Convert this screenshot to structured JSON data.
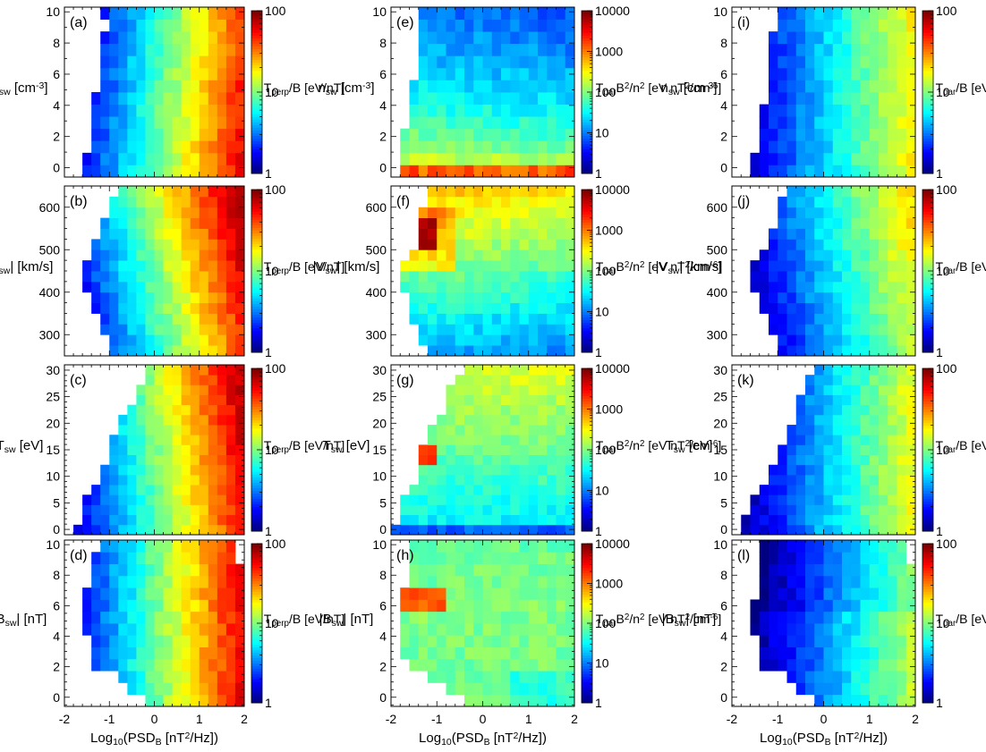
{
  "figure": {
    "xlabel": "Log10(PSD_B [nT^2/Hz])",
    "xlabel_parts": {
      "prefix": "Log",
      "prefix_sub": "10",
      "mid": "(PSD",
      "mid_sub": "B",
      "rest": " [nT",
      "rest_sup": "2",
      "end": "/Hz])"
    },
    "xticks": [
      "-2",
      "-1",
      "0",
      "1",
      "2"
    ],
    "colorbar_labels": {
      "tperp": {
        "base": "T",
        "sub": "perp",
        "rest": "/B [eV/nT]"
      },
      "tpar_b2n2": {
        "base": "T",
        "sub": "par",
        "mid": "B",
        "sup1": "2",
        "mid2": "/n",
        "sup2": "2",
        "rest": " [eV nT",
        "sup3": "2",
        "rest2": "/cm",
        "sup4": "-6",
        "end": "]"
      },
      "tpar_b": {
        "base": "T",
        "sub": "par",
        "rest": "/B [eV/nT]"
      }
    },
    "colorbar_ticks": {
      "tperp": [
        "1",
        "10",
        "100"
      ],
      "tpar_b2n2": [
        "1",
        "10",
        "100",
        "1000",
        "10000"
      ],
      "tpar_b": [
        "1",
        "10",
        "100"
      ]
    },
    "ylabels": {
      "n": {
        "base": "n",
        "sub": "sw",
        "rest": " [cm",
        "sup": "-3",
        "end": "]"
      },
      "v": {
        "base": "|V",
        "sub": "sw",
        "rest": "| [km/s]"
      },
      "t": {
        "base": "T",
        "sub": "sw",
        "rest": " [eV]"
      },
      "b": {
        "base": "|B",
        "sub": "sw",
        "rest": "| [nT]"
      }
    },
    "yticks": {
      "n": [
        "0",
        "2",
        "4",
        "6",
        "8",
        "10"
      ],
      "v": [
        "300",
        "400",
        "500",
        "600"
      ],
      "t": [
        "0",
        "5",
        "10",
        "15",
        "20",
        "25",
        "30"
      ],
      "b": [
        "0",
        "2",
        "4",
        "6",
        "8",
        "10"
      ]
    }
  },
  "chart_data": [
    {
      "panel": "a",
      "type": "heatmap",
      "x_quantity": "Log10(PSD_B)",
      "y_quantity": "n_sw",
      "ylim": [
        -0.6,
        10.3
      ],
      "xlim": [
        -2,
        2
      ],
      "colorbar": "Tperp/B [eV/nT]",
      "clim": [
        1,
        100
      ],
      "clim_log": true,
      "trend": "color increases with x; edge at x=-1.6..-1.0 for low y, white upper-left"
    },
    {
      "panel": "b",
      "type": "heatmap",
      "x_quantity": "Log10(PSD_B)",
      "y_quantity": "|V_sw|",
      "ylim": [
        250,
        650
      ],
      "xlim": [
        -2,
        2
      ],
      "colorbar": "Tperp/B [eV/nT]",
      "clim": [
        1,
        100
      ],
      "clim_log": true,
      "trend": "increases with x and with y"
    },
    {
      "panel": "c",
      "type": "heatmap",
      "x_quantity": "Log10(PSD_B)",
      "y_quantity": "T_sw",
      "ylim": [
        -1,
        31
      ],
      "xlim": [
        -2,
        2
      ],
      "colorbar": "Tperp/B [eV/nT]",
      "clim": [
        1,
        100
      ],
      "clim_log": true,
      "trend": "increases with x"
    },
    {
      "panel": "d",
      "type": "heatmap",
      "x_quantity": "Log10(PSD_B)",
      "y_quantity": "|B_sw|",
      "ylim": [
        -0.6,
        10.3
      ],
      "xlim": [
        -2,
        2
      ],
      "colorbar": "Tperp/B [eV/nT]",
      "clim": [
        1,
        100
      ],
      "clim_log": true,
      "trend": "increases with x"
    },
    {
      "panel": "e",
      "type": "heatmap",
      "x_quantity": "Log10(PSD_B)",
      "y_quantity": "n_sw",
      "ylim": [
        -0.6,
        10.3
      ],
      "xlim": [
        -2,
        2
      ],
      "colorbar": "Tpar B^2/n^2 [eV nT^2/cm^-6]",
      "clim": [
        1,
        10000
      ],
      "clim_log": true,
      "trend": "decreases strongly with n; highest near n=0"
    },
    {
      "panel": "f",
      "type": "heatmap",
      "x_quantity": "Log10(PSD_B)",
      "y_quantity": "|V_sw|",
      "ylim": [
        250,
        650
      ],
      "xlim": [
        -2,
        2
      ],
      "colorbar": "Tpar B^2/n^2 [eV nT^2/cm^-6]",
      "clim": [
        1,
        10000
      ],
      "clim_log": true,
      "trend": "increases with V; peak near V=550, x=-1.3"
    },
    {
      "panel": "g",
      "type": "heatmap",
      "x_quantity": "Log10(PSD_B)",
      "y_quantity": "T_sw",
      "ylim": [
        -1,
        31
      ],
      "xlim": [
        -2,
        2
      ],
      "colorbar": "Tpar B^2/n^2 [eV nT^2/cm^-6]",
      "clim": [
        1,
        10000
      ],
      "clim_log": true,
      "trend": "increases with T; low at T=0"
    },
    {
      "panel": "h",
      "type": "heatmap",
      "x_quantity": "Log10(PSD_B)",
      "y_quantity": "|B_sw|",
      "ylim": [
        -0.6,
        10.3
      ],
      "xlim": [
        -2,
        2
      ],
      "colorbar": "Tpar B^2/n^2 [eV nT^2/cm^-6]",
      "clim": [
        1,
        10000
      ],
      "clim_log": true,
      "trend": "mostly ~100; higher near B=6.5, x=-1.3"
    },
    {
      "panel": "i",
      "type": "heatmap",
      "x_quantity": "Log10(PSD_B)",
      "y_quantity": "n_sw",
      "ylim": [
        -0.6,
        10.3
      ],
      "xlim": [
        -2,
        2
      ],
      "colorbar": "Tpar/B [eV/nT]",
      "clim": [
        1,
        100
      ],
      "clim_log": true,
      "trend": "increases with x, lower than Tperp"
    },
    {
      "panel": "j",
      "type": "heatmap",
      "x_quantity": "Log10(PSD_B)",
      "y_quantity": "|V_sw|",
      "ylim": [
        250,
        650
      ],
      "xlim": [
        -2,
        2
      ],
      "colorbar": "Tpar/B [eV/nT]",
      "clim": [
        1,
        100
      ],
      "clim_log": true,
      "trend": "increases with x and V"
    },
    {
      "panel": "k",
      "type": "heatmap",
      "x_quantity": "Log10(PSD_B)",
      "y_quantity": "T_sw",
      "ylim": [
        -1,
        31
      ],
      "xlim": [
        -2,
        2
      ],
      "colorbar": "Tpar/B [eV/nT]",
      "clim": [
        1,
        100
      ],
      "clim_log": true,
      "trend": "increases with x"
    },
    {
      "panel": "l",
      "type": "heatmap",
      "x_quantity": "Log10(PSD_B)",
      "y_quantity": "|B_sw|",
      "ylim": [
        -0.6,
        10.3
      ],
      "xlim": [
        -2,
        2
      ],
      "colorbar": "Tpar/B [eV/nT]",
      "clim": [
        1,
        100
      ],
      "clim_log": true,
      "trend": "low overall; increases with x"
    }
  ]
}
